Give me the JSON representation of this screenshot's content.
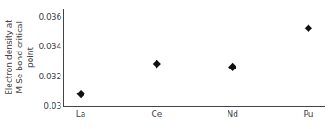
{
  "chart_data": {
    "type": "scatter",
    "categories": [
      "La",
      "Ce",
      "Nd",
      "Pu"
    ],
    "values": [
      0.0308,
      0.0328,
      0.0326,
      0.0352
    ],
    "ylabel": "Electron density at\nM-Se bond critical\npoint",
    "ylim": [
      0.03,
      0.0365
    ],
    "yticks": [
      0.03,
      0.032,
      0.034,
      0.036
    ],
    "marker": "diamond",
    "color": "#111111",
    "grid": false
  }
}
